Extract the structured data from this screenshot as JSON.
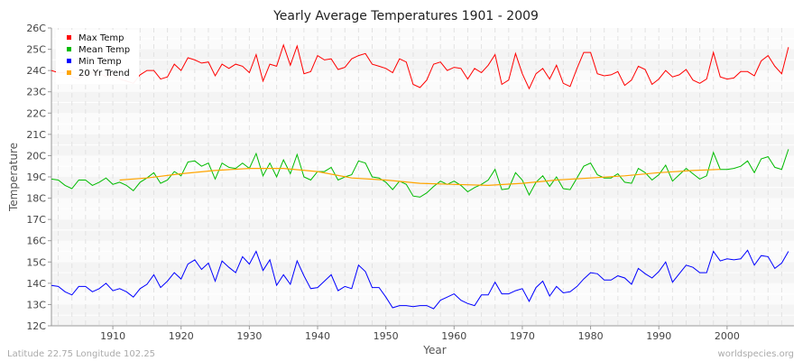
{
  "chart_data": {
    "type": "line",
    "title": "Yearly Average Temperatures 1901 - 2009",
    "xlabel": "Year",
    "ylabel": "Temperature",
    "xlim": [
      1901,
      2009
    ],
    "ylim": [
      12,
      26
    ],
    "x_ticks": [
      1910,
      1920,
      1930,
      1940,
      1950,
      1960,
      1970,
      1980,
      1990,
      2000
    ],
    "y_ticks": [
      "12C",
      "13C",
      "14C",
      "15C",
      "16C",
      "17C",
      "18C",
      "19C",
      "20C",
      "21C",
      "22C",
      "23C",
      "24C",
      "25C",
      "26C"
    ],
    "grid": true,
    "legend_placement": "top-left",
    "x_start": 1901,
    "series": [
      {
        "name": "Max Temp",
        "color": "#ff0000",
        "values": [
          24.0,
          23.9,
          23.9,
          23.7,
          23.6,
          23.8,
          23.9,
          23.9,
          23.7,
          23.8,
          23.6,
          23.5,
          23.4,
          23.8,
          24.0,
          24.0,
          23.6,
          23.7,
          24.3,
          24.0,
          24.6,
          24.5,
          24.35,
          24.4,
          23.75,
          24.3,
          24.1,
          24.3,
          24.2,
          23.9,
          24.75,
          23.5,
          24.3,
          24.2,
          25.2,
          24.25,
          25.15,
          23.85,
          23.95,
          24.7,
          24.5,
          24.55,
          24.05,
          24.15,
          24.55,
          24.7,
          24.8,
          24.3,
          24.2,
          24.1,
          23.9,
          24.55,
          24.4,
          23.35,
          23.2,
          23.55,
          24.3,
          24.4,
          24.0,
          24.15,
          24.1,
          23.6,
          24.1,
          23.9,
          24.25,
          24.75,
          23.35,
          23.55,
          24.8,
          23.85,
          23.15,
          23.85,
          24.1,
          23.6,
          24.25,
          23.4,
          23.25,
          24.1,
          24.85,
          24.85,
          23.85,
          23.75,
          23.8,
          23.95,
          23.3,
          23.55,
          24.2,
          24.05,
          23.35,
          23.6,
          24.0,
          23.7,
          23.8,
          24.05,
          23.55,
          23.4,
          23.6,
          24.85,
          23.7,
          23.6,
          23.65,
          23.95,
          23.95,
          23.75,
          24.45,
          24.7,
          24.2,
          23.85,
          25.1
        ]
      },
      {
        "name": "Mean Temp",
        "color": "#00bb00",
        "values": [
          18.9,
          18.85,
          18.6,
          18.45,
          18.85,
          18.85,
          18.6,
          18.75,
          18.95,
          18.65,
          18.75,
          18.6,
          18.35,
          18.75,
          18.95,
          19.2,
          18.7,
          18.85,
          19.25,
          19.05,
          19.7,
          19.75,
          19.5,
          19.65,
          18.9,
          19.65,
          19.45,
          19.4,
          19.65,
          19.4,
          20.1,
          19.05,
          19.65,
          19.0,
          19.8,
          19.15,
          20.05,
          19.0,
          18.85,
          19.25,
          19.25,
          19.45,
          18.85,
          19.0,
          19.1,
          19.75,
          19.65,
          19.0,
          18.95,
          18.75,
          18.4,
          18.8,
          18.65,
          18.1,
          18.05,
          18.25,
          18.55,
          18.8,
          18.65,
          18.8,
          18.6,
          18.3,
          18.5,
          18.65,
          18.85,
          19.35,
          18.4,
          18.45,
          19.2,
          18.85,
          18.15,
          18.75,
          19.05,
          18.55,
          19.0,
          18.45,
          18.4,
          18.95,
          19.5,
          19.65,
          19.1,
          18.95,
          18.95,
          19.15,
          18.75,
          18.7,
          19.4,
          19.2,
          18.85,
          19.1,
          19.55,
          18.8,
          19.1,
          19.4,
          19.15,
          18.9,
          19.05,
          20.15,
          19.35,
          19.35,
          19.4,
          19.5,
          19.75,
          19.2,
          19.85,
          19.95,
          19.45,
          19.35,
          20.3
        ]
      },
      {
        "name": "Min Temp",
        "color": "#0000ff",
        "values": [
          13.9,
          13.85,
          13.6,
          13.45,
          13.85,
          13.85,
          13.6,
          13.75,
          14.0,
          13.65,
          13.75,
          13.6,
          13.35,
          13.75,
          13.95,
          14.4,
          13.8,
          14.1,
          14.5,
          14.2,
          14.9,
          15.1,
          14.65,
          14.95,
          14.1,
          15.05,
          14.75,
          14.5,
          15.25,
          14.9,
          15.5,
          14.6,
          15.1,
          13.9,
          14.4,
          13.95,
          15.05,
          14.35,
          13.75,
          13.8,
          14.1,
          14.4,
          13.65,
          13.85,
          13.75,
          14.85,
          14.55,
          13.8,
          13.8,
          13.35,
          12.85,
          12.95,
          12.95,
          12.9,
          12.95,
          12.95,
          12.8,
          13.2,
          13.35,
          13.5,
          13.2,
          13.05,
          12.95,
          13.45,
          13.45,
          14.05,
          13.5,
          13.5,
          13.65,
          13.75,
          13.15,
          13.8,
          14.1,
          13.4,
          13.85,
          13.55,
          13.6,
          13.85,
          14.2,
          14.5,
          14.45,
          14.15,
          14.15,
          14.35,
          14.25,
          13.95,
          14.7,
          14.45,
          14.25,
          14.55,
          15.0,
          14.05,
          14.45,
          14.85,
          14.75,
          14.5,
          14.5,
          15.5,
          15.05,
          15.15,
          15.1,
          15.15,
          15.55,
          14.85,
          15.3,
          15.25,
          14.7,
          14.95,
          15.5
        ]
      },
      {
        "name": "20 Yr Trend",
        "color": "#ffa500",
        "x": [
          1911,
          1915,
          1920,
          1925,
          1930,
          1935,
          1940,
          1945,
          1950,
          1955,
          1960,
          1965,
          1970,
          1975,
          1980,
          1985,
          1990,
          1995,
          1999
        ],
        "values": [
          18.85,
          18.95,
          19.15,
          19.3,
          19.4,
          19.4,
          19.25,
          18.95,
          18.85,
          18.7,
          18.65,
          18.6,
          18.7,
          18.85,
          18.95,
          19.05,
          19.2,
          19.3,
          19.35
        ]
      }
    ]
  },
  "footer": {
    "location": "Latitude 22.75 Longitude 102.25",
    "source": "worldspecies.org"
  }
}
